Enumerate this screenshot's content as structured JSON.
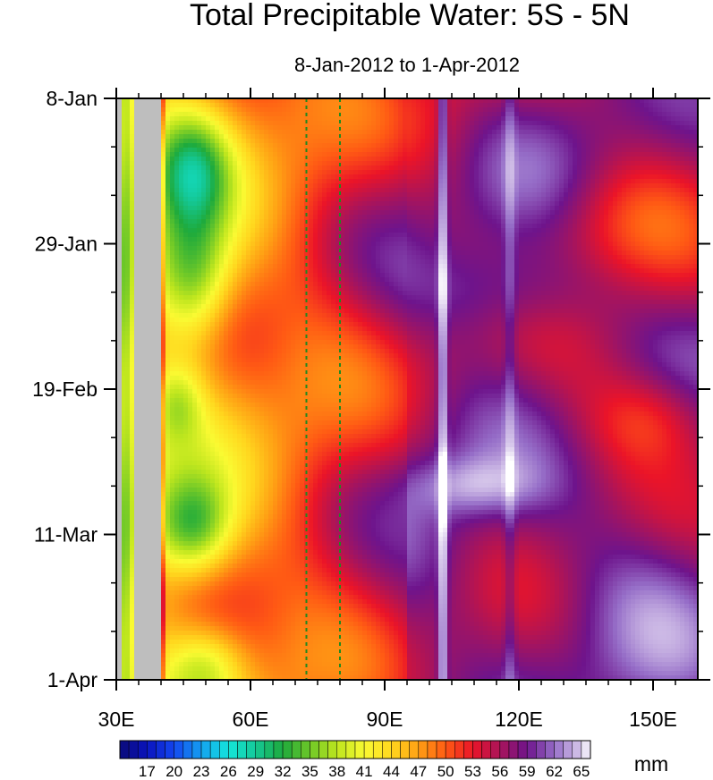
{
  "chart_data": {
    "type": "heatmap",
    "title": "Total Precipitable Water: 5S - 5N",
    "subtitle": "8-Jan-2012 to 1-Apr-2012",
    "x_axis": {
      "range": [
        30,
        160
      ],
      "unit": "longitude (degrees east)",
      "ticks": [
        30,
        60,
        90,
        120,
        150
      ],
      "tick_labels": [
        "30E",
        "60E",
        "90E",
        "120E",
        "150E"
      ]
    },
    "y_axis": {
      "range": [
        "2012-01-08",
        "2012-04-01"
      ],
      "reversed": true,
      "ticks": [
        "2012-01-08",
        "2012-01-29",
        "2012-02-19",
        "2012-03-11",
        "2012-04-01"
      ],
      "tick_labels": [
        "8-Jan",
        "29-Jan",
        "19-Feb",
        "11-Mar",
        "1-Apr"
      ]
    },
    "colorbar": {
      "units": "mm",
      "range": [
        14,
        66
      ],
      "labels": [
        17,
        20,
        23,
        26,
        29,
        32,
        35,
        38,
        41,
        44,
        47,
        50,
        53,
        56,
        59,
        62,
        65
      ]
    },
    "reference_lines_longitude": [
      72.5,
      80
    ],
    "missing_value_band_longitude": [
      34,
      40
    ],
    "colors": {
      "missing": "#bebebe",
      "reference_line": "#1f8a1f"
    }
  }
}
